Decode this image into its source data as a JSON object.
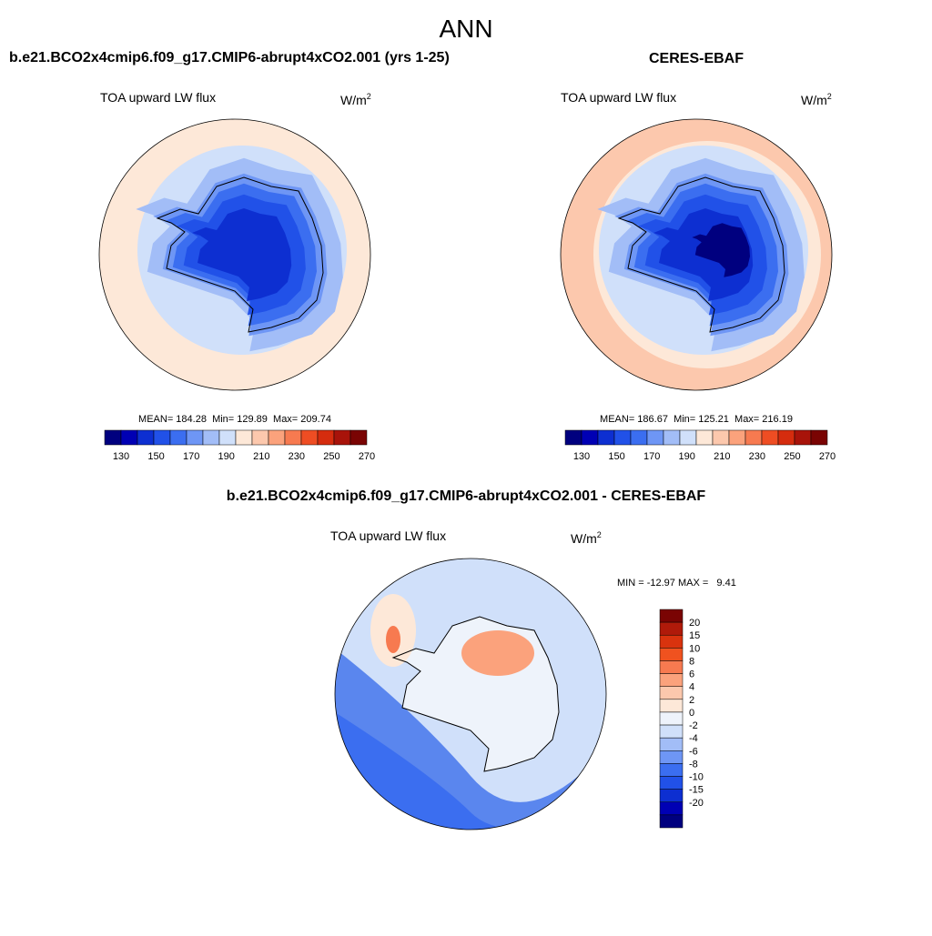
{
  "title": "ANN",
  "panels": [
    {
      "title": "b.e21.BCO2x4cmip6.f09_g17.CMIP6-abrupt4xCO2.001 (yrs 1-25)",
      "variable": "TOA upward LW flux",
      "units": {
        "base": "W/m",
        "sup": "2"
      },
      "stats": "MEAN= 184.28  Min= 129.89  Max= 209.74",
      "colorbar": {
        "colors": [
          "#00007f",
          "#0000b4",
          "#0d2fd1",
          "#2151e8",
          "#3b6ef0",
          "#6e96f5",
          "#a2bdf7",
          "#d0e0fa",
          "#fde8d8",
          "#fcc8ad",
          "#fba27c",
          "#f77a50",
          "#ee4d23",
          "#d52c0e",
          "#a8130a",
          "#7a0403"
        ],
        "labels": [
          130,
          150,
          170,
          190,
          210,
          230,
          250,
          270
        ]
      }
    },
    {
      "title": "CERES-EBAF",
      "variable": "TOA upward LW flux",
      "units": {
        "base": "W/m",
        "sup": "2"
      },
      "stats": "MEAN= 186.67  Min= 125.21  Max= 216.19",
      "colorbar": {
        "colors": [
          "#00007f",
          "#0000b4",
          "#0d2fd1",
          "#2151e8",
          "#3b6ef0",
          "#6e96f5",
          "#a2bdf7",
          "#d0e0fa",
          "#fde8d8",
          "#fcc8ad",
          "#fba27c",
          "#f77a50",
          "#ee4d23",
          "#d52c0e",
          "#a8130a",
          "#7a0403"
        ],
        "labels": [
          130,
          150,
          170,
          190,
          210,
          230,
          250,
          270
        ]
      }
    },
    {
      "title": "b.e21.BCO2x4cmip6.f09_g17.CMIP6-abrupt4xCO2.001 - CERES-EBAF",
      "variable": "TOA upward LW flux",
      "units": {
        "base": "W/m",
        "sup": "2"
      },
      "stats": "MIN = -12.97 MAX =   9.41",
      "colorbar": {
        "colors": [
          "#7a0403",
          "#b01a0a",
          "#d9330e",
          "#f0521f",
          "#f77a50",
          "#fba27c",
          "#fcc8ad",
          "#fde8d8",
          "#eef3fb",
          "#d0e0fa",
          "#a2bdf7",
          "#6e96f5",
          "#3b6ef0",
          "#2151e8",
          "#0d2fd1",
          "#0000b4",
          "#00007f"
        ],
        "labels": [
          20,
          15,
          10,
          8,
          6,
          4,
          2,
          0,
          -2,
          -4,
          -6,
          -8,
          -10,
          -15,
          -20
        ]
      }
    }
  ]
}
